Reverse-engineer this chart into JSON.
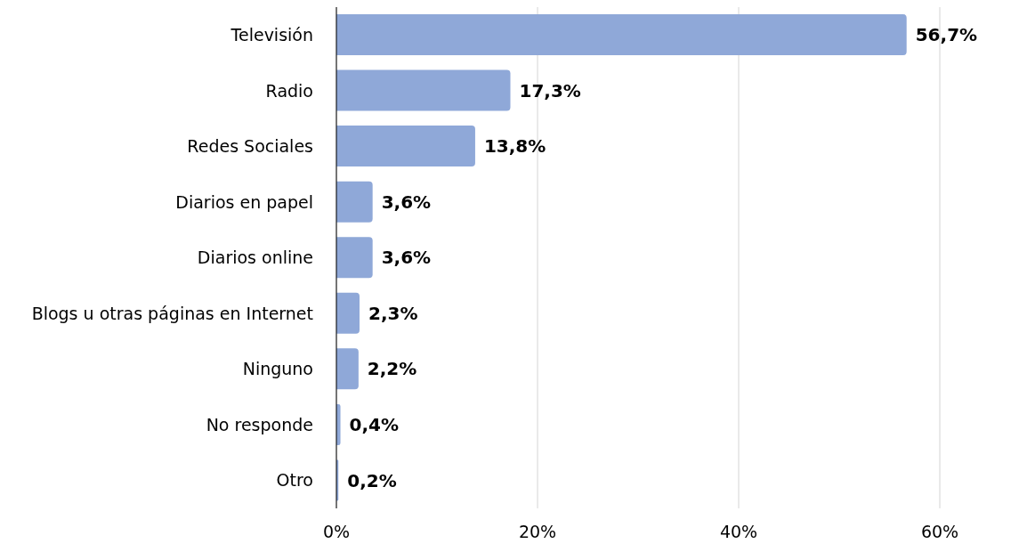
{
  "chart_data": {
    "type": "bar",
    "orientation": "horizontal",
    "categories": [
      "Televisión",
      "Radio",
      "Redes Sociales",
      "Diarios en papel",
      "Diarios online",
      "Blogs u otras páginas en Internet",
      "Ninguno",
      "No responde",
      "Otro"
    ],
    "values": [
      56.7,
      17.3,
      13.8,
      3.6,
      3.6,
      2.3,
      2.2,
      0.4,
      0.2
    ],
    "value_labels": [
      "56,7%",
      "17,3%",
      "13,8%",
      "3,6%",
      "3,6%",
      "2,3%",
      "2,2%",
      "0,4%",
      "0,2%"
    ],
    "color": "#8fa8d8",
    "xlim": [
      0,
      60
    ],
    "xticks": [
      {
        "value": 0,
        "label": "0%"
      },
      {
        "value": 20,
        "label": "20%"
      },
      {
        "value": 40,
        "label": "40%"
      },
      {
        "value": 60,
        "label": "60%"
      }
    ],
    "grid": "x",
    "legend": false
  }
}
